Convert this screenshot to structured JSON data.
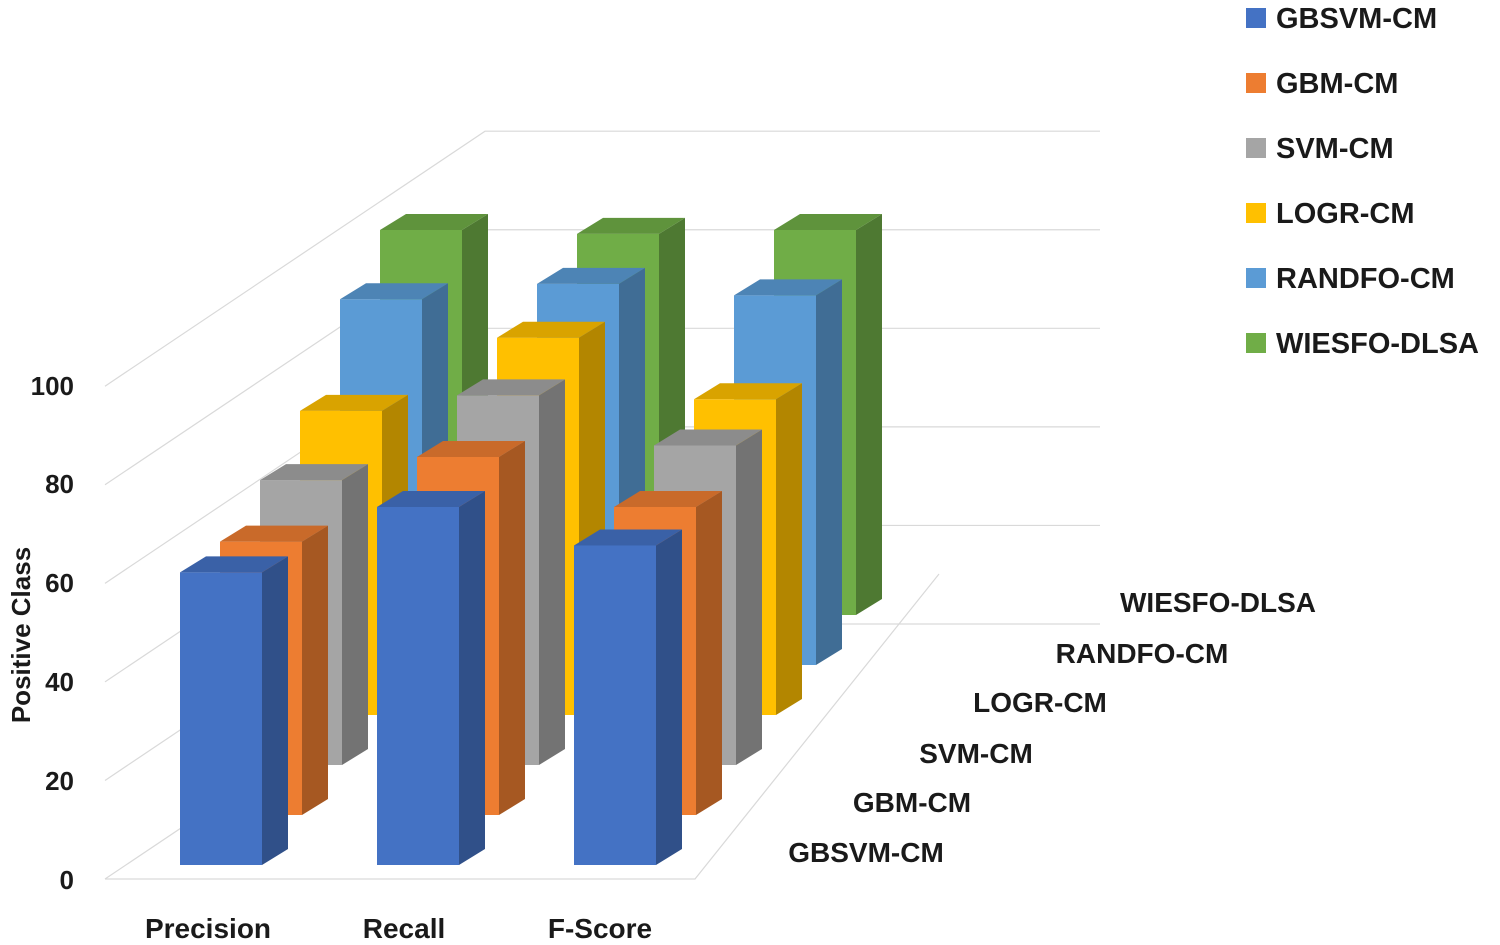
{
  "chart_data": {
    "type": "bar",
    "title": "",
    "xlabel": "",
    "ylabel": "Positive Class",
    "ylim": [
      0,
      100
    ],
    "y_ticks": [
      "0",
      "20",
      "40",
      "60",
      "80",
      "100"
    ],
    "categories": [
      "Precision",
      "Recall",
      "F-Score"
    ],
    "grid": true,
    "legend_position": "top-right",
    "series": [
      {
        "name": "GBSVM-CM",
        "color": "#4472C4",
        "values": [
          76,
          93,
          83
        ]
      },
      {
        "name": "GBM-CM",
        "color": "#ED7D31",
        "values": [
          71,
          93,
          80
        ]
      },
      {
        "name": "SVM-CM",
        "color": "#A5A5A5",
        "values": [
          74,
          96,
          83
        ]
      },
      {
        "name": "LOGR-CM",
        "color": "#FFC000",
        "values": [
          79,
          98,
          82
        ]
      },
      {
        "name": "RANDFO-CM",
        "color": "#5B9BD5",
        "values": [
          95,
          99,
          96
        ]
      },
      {
        "name": "WIESFO-DLSA",
        "color": "#70AD47",
        "values": [
          100,
          99,
          100
        ]
      }
    ]
  }
}
